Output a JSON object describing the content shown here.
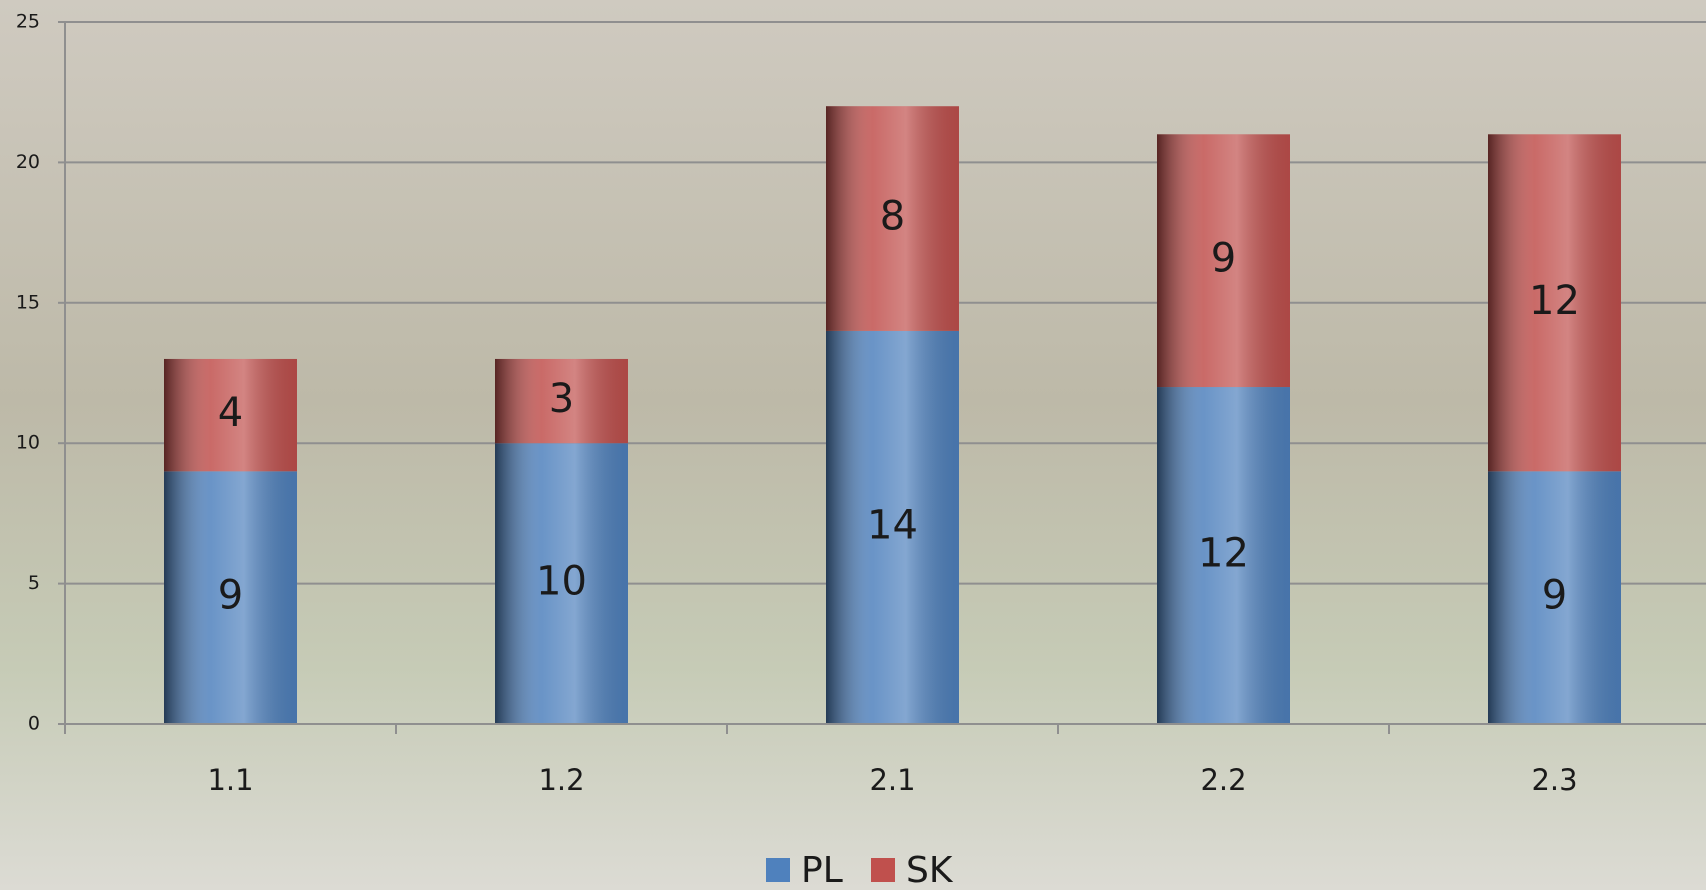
{
  "chart_data": {
    "type": "stacked-bar",
    "categories": [
      "1.1",
      "1.2",
      "2.1",
      "2.2",
      "2.3"
    ],
    "series": [
      {
        "name": "PL",
        "color": "#4f81bd",
        "values": [
          9,
          10,
          14,
          12,
          9
        ]
      },
      {
        "name": "SK",
        "color": "#c0504d",
        "values": [
          4,
          3,
          8,
          9,
          12
        ]
      }
    ],
    "ylim": [
      0,
      25
    ],
    "yticks": [
      0,
      5,
      10,
      15,
      20,
      25
    ],
    "grid": true,
    "legend": "bottom"
  }
}
